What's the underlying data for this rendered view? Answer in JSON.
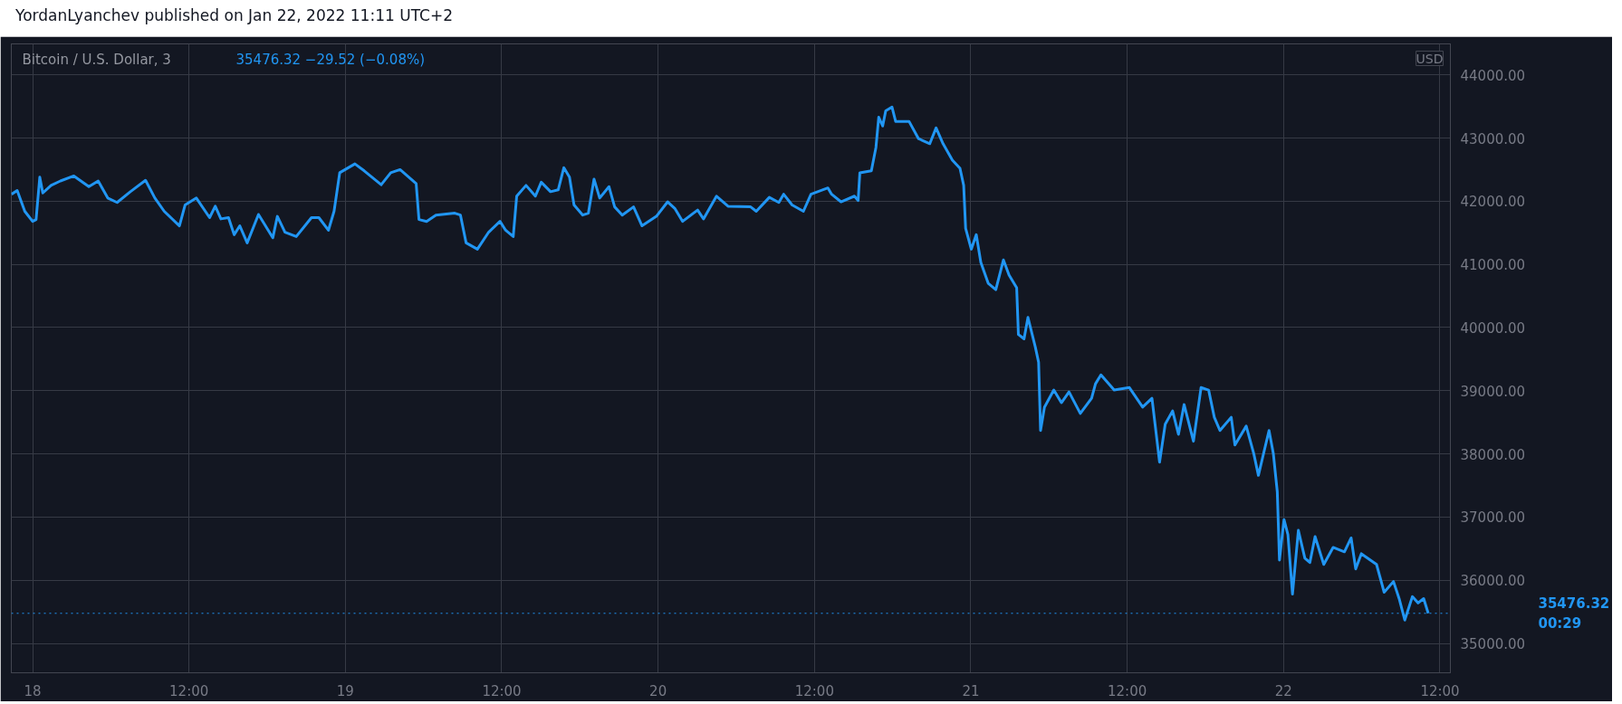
{
  "chart_data": {
    "type": "line",
    "title": "YordanLyanchev published on Jan 22, 2022 11:11 UTC+2",
    "subtitle": "Bitcoin / U.S. Dollar, 3",
    "ylabel": "USD",
    "annotations": [
      "35476.32  −29.52 (−0.08%)",
      "00:29"
    ],
    "x": [
      "2022-01-17T22:23",
      "2022-01-17T22:49",
      "2022-01-17T23:24",
      "2022-01-18T00:00",
      "2022-01-18T00:16",
      "2022-01-18T00:33",
      "2022-01-18T00:47",
      "2022-01-18T01:25",
      "2022-01-18T02:08",
      "2022-01-18T03:10",
      "2022-01-18T04:19",
      "2022-01-18T05:02",
      "2022-01-18T05:46",
      "2022-01-18T06:29",
      "2022-01-18T07:30",
      "2022-01-18T08:40",
      "2022-01-18T09:23",
      "2022-01-18T10:06",
      "2022-01-18T11:16",
      "2022-01-18T11:42",
      "2022-01-18T12:34",
      "2022-01-18T13:35",
      "2022-01-18T14:01",
      "2022-01-18T14:27",
      "2022-01-18T15:02",
      "2022-01-18T15:28",
      "2022-01-18T15:54",
      "2022-01-18T16:28",
      "2022-01-18T17:20",
      "2022-01-18T17:47",
      "2022-01-18T18:26",
      "2022-01-18T18:47",
      "2022-01-18T19:22",
      "2022-01-18T20:14",
      "2022-01-18T21:24",
      "2022-01-18T21:58",
      "2022-01-18T22:42",
      "2022-01-18T23:08",
      "2022-01-18T23:34",
      "2022-01-19T00:44",
      "2022-01-19T01:27",
      "2022-01-19T02:45",
      "2022-01-19T03:29",
      "2022-01-19T04:12",
      "2022-01-19T05:26",
      "2022-01-19T05:39",
      "2022-01-19T06:14",
      "2022-01-19T06:57",
      "2022-01-19T08:24",
      "2022-01-19T08:50",
      "2022-01-19T09:16",
      "2022-01-19T10:08",
      "2022-01-19T11:00",
      "2022-01-19T11:52",
      "2022-01-19T12:18",
      "2022-01-19T12:53",
      "2022-01-19T13:09",
      "2022-01-19T13:52",
      "2022-01-19T14:35",
      "2022-01-19T15:02",
      "2022-01-19T15:45",
      "2022-01-19T16:20",
      "2022-01-19T16:46",
      "2022-01-19T17:12",
      "2022-01-19T17:33",
      "2022-01-19T18:13",
      "2022-01-19T18:39",
      "2022-01-19T19:05",
      "2022-01-19T19:31",
      "2022-01-19T20:14",
      "2022-01-19T20:40",
      "2022-01-19T21:15",
      "2022-01-19T22:07",
      "2022-01-19T22:46",
      "2022-01-19T23:52",
      "2022-01-20T00:44",
      "2022-01-20T01:18",
      "2022-01-20T01:53",
      "2022-01-20T03:02",
      "2022-01-20T03:29",
      "2022-01-20T04:29",
      "2022-01-20T05:22",
      "2022-01-20T07:06",
      "2022-01-20T07:32",
      "2022-01-20T08:32",
      "2022-01-20T09:16",
      "2022-01-20T09:38",
      "2022-01-20T10:17",
      "2022-01-20T11:09",
      "2022-01-20T11:44",
      "2022-01-20T13:02",
      "2022-01-20T13:19",
      "2022-01-20T14:02",
      "2022-01-20T15:04",
      "2022-01-20T15:21",
      "2022-01-20T15:29",
      "2022-01-20T16:22",
      "2022-01-20T16:43",
      "2022-01-20T16:56",
      "2022-01-20T17:14",
      "2022-01-20T17:28",
      "2022-01-20T17:57",
      "2022-01-20T18:14",
      "2022-01-20T19:16",
      "2022-01-20T19:59",
      "2022-01-20T20:51",
      "2022-01-20T21:20",
      "2022-01-20T21:52",
      "2022-01-20T22:35",
      "2022-01-20T23:10",
      "2022-01-20T23:27",
      "2022-01-20T23:36",
      "2022-01-21T00:02",
      "2022-01-21T00:25",
      "2022-01-21T00:46",
      "2022-01-21T01:20",
      "2022-01-21T01:55",
      "2022-01-21T02:30",
      "2022-01-21T02:56",
      "2022-01-21T03:31",
      "2022-01-21T03:39",
      "2022-01-21T04:05",
      "2022-01-21T04:23",
      "2022-01-21T04:57",
      "2022-01-21T05:12",
      "2022-01-21T05:21",
      "2022-01-21T05:39",
      "2022-01-21T06:22",
      "2022-01-21T06:57",
      "2022-01-21T07:32",
      "2022-01-21T08:24",
      "2022-01-21T09:16",
      "2022-01-21T09:34",
      "2022-01-21T09:59",
      "2022-01-21T11:00",
      "2022-01-21T12:10",
      "2022-01-21T13:11",
      "2022-01-21T13:54",
      "2022-01-21T14:29",
      "2022-01-21T14:55",
      "2022-01-21T15:29",
      "2022-01-21T15:56",
      "2022-01-21T16:22",
      "2022-01-21T17:05",
      "2022-01-21T17:40",
      "2022-01-21T18:15",
      "2022-01-21T18:41",
      "2022-01-21T19:07",
      "2022-01-21T19:59",
      "2022-01-21T20:16",
      "2022-01-21T21:08",
      "2022-01-21T21:43",
      "2022-01-21T22:04",
      "2022-01-21T22:53",
      "2022-01-21T23:13",
      "2022-01-21T23:31",
      "2022-01-21T23:41",
      "2022-01-22T00:02",
      "2022-01-22T00:20",
      "2022-01-22T00:41",
      "2022-01-22T01:08",
      "2022-01-22T01:38",
      "2022-01-22T02:01",
      "2022-01-22T02:25",
      "2022-01-22T03:05",
      "2022-01-22T03:48",
      "2022-01-22T04:40",
      "2022-01-22T05:11",
      "2022-01-22T05:32",
      "2022-01-22T05:58",
      "2022-01-22T07:08",
      "2022-01-22T07:43",
      "2022-01-22T08:26",
      "2022-01-22T08:52",
      "2022-01-22T09:18",
      "2022-01-22T09:53",
      "2022-01-22T10:19",
      "2022-01-22T10:45",
      "2022-01-22T11:06"
    ],
    "series": [
      {
        "color": "#2196f3",
        "values": [
          42110,
          42170,
          41840,
          41680,
          41710,
          42380,
          42130,
          42250,
          42320,
          42400,
          42230,
          42320,
          42050,
          41980,
          42150,
          42330,
          42050,
          41840,
          41610,
          41940,
          42050,
          41740,
          41920,
          41720,
          41740,
          41470,
          41610,
          41340,
          41790,
          41640,
          41420,
          41760,
          41510,
          41440,
          41740,
          41740,
          41540,
          41840,
          42450,
          42590,
          42480,
          42260,
          42450,
          42500,
          42280,
          41710,
          41680,
          41780,
          41810,
          41780,
          41340,
          41240,
          41510,
          41680,
          41540,
          41440,
          42080,
          42250,
          42080,
          42300,
          42150,
          42180,
          42530,
          42380,
          41940,
          41780,
          41810,
          42350,
          42050,
          42230,
          41910,
          41780,
          41910,
          41610,
          41760,
          41990,
          41880,
          41680,
          41860,
          41720,
          42080,
          41920,
          41910,
          41840,
          42060,
          41980,
          42110,
          41940,
          41840,
          42110,
          42210,
          42110,
          41990,
          42080,
          42010,
          42450,
          42480,
          42850,
          43330,
          43190,
          43430,
          43490,
          43260,
          43260,
          42990,
          42910,
          43160,
          42910,
          42650,
          42520,
          42250,
          41570,
          41240,
          41470,
          41030,
          40700,
          40600,
          41070,
          40830,
          40630,
          39890,
          39820,
          40160,
          39690,
          39450,
          38370,
          38740,
          39010,
          38810,
          38980,
          38640,
          38880,
          39110,
          39250,
          39010,
          39050,
          38740,
          38880,
          37870,
          38470,
          38680,
          38310,
          38780,
          38200,
          39050,
          39010,
          38580,
          38370,
          38580,
          38140,
          38440,
          38000,
          37660,
          38370,
          38000,
          37400,
          36320,
          36960,
          36720,
          35780,
          36790,
          36350,
          36280,
          36690,
          36250,
          36520,
          36450,
          36670,
          36180,
          36420,
          36250,
          35810,
          35980,
          35710,
          35370,
          35740,
          35640,
          35710,
          35476.32
        ]
      }
    ],
    "xlim": [
      "2022-01-17T22:22",
      "2022-01-22T12:48"
    ],
    "xticks": [
      {
        "value": "2022-01-18T00:00",
        "label": "18"
      },
      {
        "value": "2022-01-18T12:00",
        "label": "12:00"
      },
      {
        "value": "2022-01-19T00:00",
        "label": "19"
      },
      {
        "value": "2022-01-19T12:00",
        "label": "12:00"
      },
      {
        "value": "2022-01-20T00:00",
        "label": "20"
      },
      {
        "value": "2022-01-20T12:00",
        "label": "12:00"
      },
      {
        "value": "2022-01-21T00:00",
        "label": "21"
      },
      {
        "value": "2022-01-21T12:00",
        "label": "12:00"
      },
      {
        "value": "2022-01-22T00:00",
        "label": "22"
      },
      {
        "value": "2022-01-22T12:00",
        "label": "12:00"
      }
    ],
    "ylim": [
      34535,
      44490
    ],
    "yticks": [
      {
        "value": 35000,
        "label": "35000.00"
      },
      {
        "value": 36000,
        "label": "36000.00"
      },
      {
        "value": 37000,
        "label": "37000.00"
      },
      {
        "value": 38000,
        "label": "38000.00"
      },
      {
        "value": 39000,
        "label": "39000.00"
      },
      {
        "value": 40000,
        "label": "40000.00"
      },
      {
        "value": 41000,
        "label": "41000.00"
      },
      {
        "value": 42000,
        "label": "42000.00"
      },
      {
        "value": 43000,
        "label": "43000.00"
      },
      {
        "value": 44000,
        "label": "44000.00"
      }
    ],
    "ref_lines": [
      {
        "axis": "y",
        "value": 35476.32,
        "label": "35476.32",
        "color": "#2196f3",
        "line_style": "dotted"
      }
    ],
    "grid": true,
    "line_style": "solid"
  }
}
